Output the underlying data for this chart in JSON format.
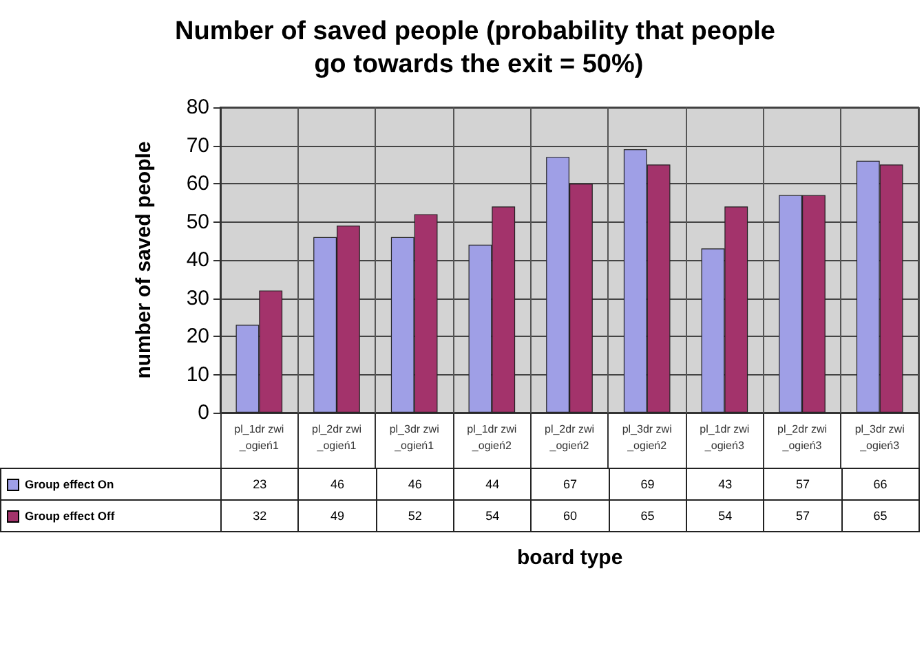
{
  "chart_data": {
    "type": "bar",
    "title": "Number of saved people (probability that people go towards the exit = 50%)",
    "annotations": [
      "board type"
    ],
    "ylabel": "number of saved people",
    "categories": [
      "pl_1dr zwi_ogień1",
      "pl_2dr zwi_ogień1",
      "pl_3dr zwi_ogień1",
      "pl_1dr zwi_ogień2",
      "pl_2dr zwi_ogień2",
      "pl_3dr zwi_ogień2",
      "pl_1dr zwi_ogień3",
      "pl_2dr zwi_ogień3",
      "pl_3dr zwi_ogień3"
    ],
    "series": [
      {
        "name": "Group effect On",
        "color": "#9f9fe6",
        "values": [
          23,
          46,
          46,
          44,
          67,
          69,
          43,
          57,
          66
        ]
      },
      {
        "name": "Group effect Off",
        "color": "#a3336b",
        "values": [
          32,
          49,
          52,
          54,
          60,
          65,
          54,
          57,
          65
        ]
      }
    ],
    "ylim": [
      0,
      80
    ],
    "yticks": [
      0,
      10,
      20,
      30,
      40,
      50,
      60,
      70,
      80
    ],
    "grid": true,
    "legend": "bottom left",
    "data_labels": true
  }
}
